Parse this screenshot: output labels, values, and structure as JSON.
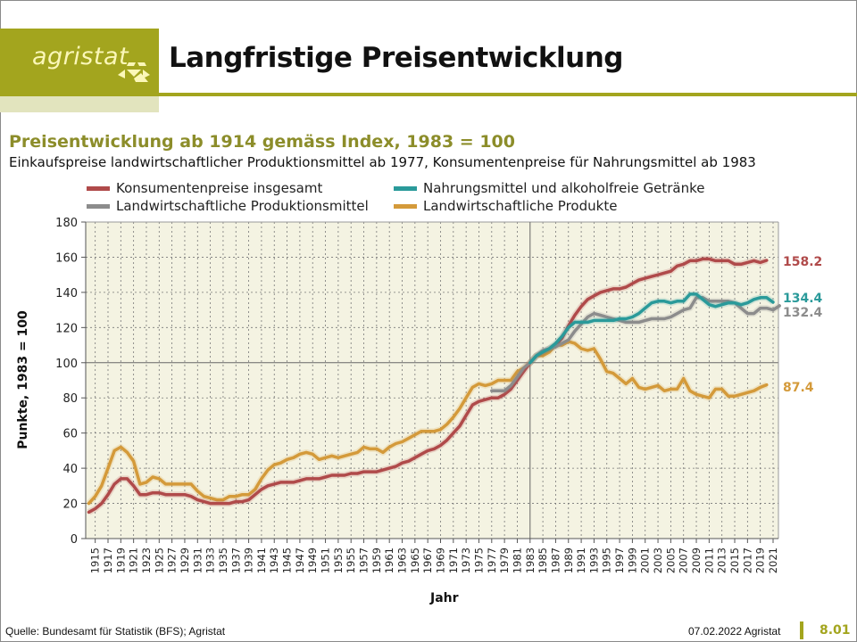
{
  "header": {
    "logo_text": "agristat",
    "title": "Langfristige Preisentwicklung"
  },
  "colors": {
    "brand": "#a3a51e",
    "plot_bg": "#f4f3e2",
    "konsum": "#b04a4a",
    "nahrung": "#2a9a9a",
    "produktionsmittel": "#8c8c8c",
    "produkte": "#d49a3a"
  },
  "footer": {
    "source": "Quelle: Bundesamt für Statistik (BFS); Agristat",
    "date": "07.02.2022 Agristat",
    "page": "8.01"
  },
  "chart_data": {
    "type": "line",
    "title": "Preisentwicklung ab 1914 gemäss Index, 1983 = 100",
    "subtitle": "Einkaufspreise landwirtschaftlicher Produktionsmittel ab 1977, Konsumentenpreise für Nahrungsmittel ab 1983",
    "xlabel": "Jahr",
    "ylabel": "Punkte, 1983 = 100",
    "ylim": [
      0,
      180
    ],
    "yticks": [
      0,
      20,
      40,
      60,
      80,
      100,
      120,
      140,
      160,
      180
    ],
    "xlim": [
      1914,
      2021
    ],
    "xtick_labels": [
      "1915",
      "1917",
      "1919",
      "1921",
      "1923",
      "1925",
      "1927",
      "1929",
      "1931",
      "1933",
      "1935",
      "1937",
      "1939",
      "1941",
      "1943",
      "1945",
      "1947",
      "1949",
      "1951",
      "1953",
      "1955",
      "1957",
      "1959",
      "1961",
      "1963",
      "1965",
      "1967",
      "1969",
      "1971",
      "1973",
      "1975",
      "1977",
      "1979",
      "1981",
      "1983",
      "1985",
      "1987",
      "1989",
      "1991",
      "1993",
      "1995",
      "1997",
      "1999",
      "2001",
      "2003",
      "2005",
      "2007",
      "2009",
      "2011",
      "2013",
      "2015",
      "2017",
      "2019",
      "2021"
    ],
    "reference_line_x": 1983,
    "grid": true,
    "legend_position": "top",
    "series": [
      {
        "name": "Konsumentenpreise insgesamt",
        "color_key": "konsum",
        "start_year": 1914,
        "end_label": "158.2",
        "values": [
          15,
          17,
          20,
          25,
          31,
          34,
          34,
          30,
          25,
          25,
          26,
          26,
          25,
          25,
          25,
          25,
          24,
          22,
          21,
          20,
          20,
          20,
          20,
          21,
          21,
          22,
          25,
          28,
          30,
          31,
          32,
          32,
          32,
          33,
          34,
          34,
          34,
          35,
          36,
          36,
          36,
          37,
          37,
          38,
          38,
          38,
          39,
          40,
          41,
          43,
          44,
          46,
          48,
          50,
          51,
          53,
          56,
          60,
          64,
          70,
          76,
          78,
          79,
          80,
          80,
          82,
          85,
          90,
          95,
          100,
          104,
          106,
          108,
          110,
          114,
          121,
          127,
          132,
          136,
          138,
          140,
          141,
          142,
          142,
          143,
          145,
          147,
          148,
          149,
          150,
          151,
          152,
          155,
          156,
          158,
          158,
          159,
          159,
          158,
          158,
          158,
          156,
          156,
          157,
          158,
          157,
          158.2
        ]
      },
      {
        "name": "Nahrungsmittel und alkoholfreie Getränke",
        "color_key": "nahrung",
        "start_year": 1983,
        "end_label": "134.4",
        "values": [
          100,
          104,
          106,
          108,
          111,
          115,
          120,
          123,
          123,
          123,
          124,
          124,
          124,
          124,
          125,
          125,
          126,
          128,
          131,
          134,
          135,
          135,
          134,
          135,
          135,
          139,
          139,
          136,
          133,
          132,
          133,
          134,
          134,
          133,
          134,
          136,
          137,
          137,
          134.4
        ]
      },
      {
        "name": "Landwirtschaftliche Produktionsmittel",
        "color_key": "produktionsmittel",
        "start_year": 1977,
        "end_label": "132.4",
        "values": [
          84,
          84,
          84,
          87,
          92,
          97,
          100,
          104,
          107,
          108,
          109,
          111,
          113,
          118,
          122,
          126,
          128,
          127,
          126,
          125,
          124,
          123,
          123,
          123,
          124,
          125,
          125,
          125,
          126,
          128,
          130,
          131,
          137,
          137,
          135,
          135,
          135,
          135,
          134,
          131,
          128,
          128,
          131,
          131,
          130,
          132.4
        ]
      },
      {
        "name": "Landwirtschaftliche Produkte",
        "color_key": "produkte",
        "start_year": 1914,
        "end_label": "87.4",
        "values": [
          20,
          24,
          30,
          40,
          50,
          52,
          49,
          44,
          31,
          32,
          35,
          34,
          31,
          31,
          31,
          31,
          31,
          27,
          24,
          23,
          22,
          22,
          24,
          24,
          25,
          25,
          28,
          34,
          39,
          42,
          43,
          45,
          46,
          48,
          49,
          48,
          45,
          46,
          47,
          46,
          47,
          48,
          49,
          52,
          51,
          51,
          49,
          52,
          54,
          55,
          57,
          59,
          61,
          61,
          61,
          62,
          65,
          69,
          74,
          80,
          86,
          88,
          87,
          88,
          90,
          90,
          90,
          95,
          97,
          100,
          104,
          104,
          106,
          110,
          110,
          112,
          111,
          108,
          107,
          108,
          102,
          95,
          94,
          91,
          88,
          91,
          86,
          85,
          86,
          87,
          84,
          85,
          85,
          91,
          84,
          82,
          81,
          80,
          85,
          85,
          81,
          81,
          82,
          83,
          84,
          86,
          87.4
        ]
      }
    ]
  }
}
